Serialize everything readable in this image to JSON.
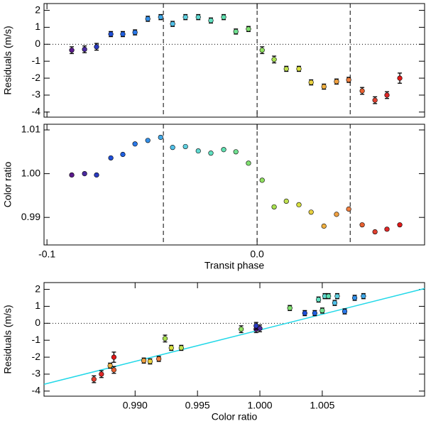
{
  "chart_data": [
    {
      "type": "scatter",
      "ylabel": "Residuals (m/s)",
      "x": [
        -0.0882,
        -0.0821,
        -0.0764,
        -0.0696,
        -0.0639,
        -0.0581,
        -0.052,
        -0.0459,
        -0.0402,
        -0.0341,
        -0.028,
        -0.022,
        -0.0159,
        -0.0101,
        -0.0041,
        0.0024,
        0.0081,
        0.0139,
        0.0199,
        0.0257,
        0.0318,
        0.0378,
        0.0436,
        0.05,
        0.0561,
        0.0618,
        0.0679
      ],
      "series": [
        {
          "values": [
            -0.35,
            -0.3,
            -0.15,
            0.6,
            0.6,
            0.7,
            1.5,
            1.6,
            1.2,
            1.6,
            1.6,
            1.4,
            1.6,
            0.75,
            0.9,
            -0.35,
            -0.9,
            -1.45,
            -1.45,
            -2.25,
            -2.5,
            -2.2,
            -2.1,
            -2.75,
            -3.3,
            -3.0,
            -2.0
          ],
          "errors": [
            0.2,
            0.2,
            0.2,
            0.15,
            0.15,
            0.15,
            0.15,
            0.15,
            0.15,
            0.15,
            0.15,
            0.15,
            0.15,
            0.15,
            0.15,
            0.2,
            0.2,
            0.15,
            0.15,
            0.15,
            0.15,
            0.15,
            0.15,
            0.2,
            0.2,
            0.2,
            0.3
          ],
          "colors": [
            "#5a1a8c",
            "#4a2aa0",
            "#2a3ac0",
            "#1f4fd8",
            "#2060e0",
            "#2a78e8",
            "#3590e8",
            "#40a8e8",
            "#50c0e8",
            "#60d0e0",
            "#60d8d0",
            "#60e0c0",
            "#60e0b0",
            "#70e090",
            "#80e070",
            "#90e060",
            "#a8e050",
            "#c0e050",
            "#d8e040",
            "#e8d040",
            "#f0b040",
            "#f0a040",
            "#f08040",
            "#e86030",
            "#e04030",
            "#e02828",
            "#e01818"
          ]
        }
      ],
      "xlim": [
        -0.1014,
        0.0797
      ],
      "ylim": [
        -4.3,
        2.4
      ],
      "xticks": [
        -0.1,
        {
          "value": 0,
          "label": "0.0"
        }
      ],
      "show_xticklabels": false,
      "yticks": [
        2,
        1,
        0,
        -1,
        -2,
        -3,
        -4
      ],
      "vlines": [
        -0.0446,
        0,
        0.0443
      ],
      "hline": 0
    },
    {
      "type": "scatter",
      "ylabel": "Color ratio",
      "xlabel": "Transit phase",
      "x": [
        -0.0882,
        -0.0821,
        -0.0764,
        -0.0696,
        -0.0639,
        -0.0581,
        -0.052,
        -0.0459,
        -0.0402,
        -0.0341,
        -0.028,
        -0.022,
        -0.0159,
        -0.0101,
        -0.0041,
        0.0024,
        0.0081,
        0.0139,
        0.0199,
        0.0257,
        0.0318,
        0.0378,
        0.0436,
        0.05,
        0.0561,
        0.0618,
        0.0679
      ],
      "series": [
        {
          "values": [
            0.9997,
            1.0,
            0.9997,
            1.0036,
            1.0044,
            1.0068,
            1.0076,
            1.0083,
            1.006,
            1.0062,
            1.0052,
            1.0047,
            1.0055,
            1.005,
            1.0024,
            0.9985,
            0.9924,
            0.9937,
            0.9929,
            0.9912,
            0.988,
            0.9907,
            0.9919,
            0.9883,
            0.9867,
            0.9873,
            0.9883
          ],
          "colors": [
            "#5a1a8c",
            "#4a2aa0",
            "#2a3ac0",
            "#1f4fd8",
            "#2060e0",
            "#2a78e8",
            "#3590e8",
            "#40a8e8",
            "#50c0e8",
            "#60d0e0",
            "#60d8d0",
            "#60e0c0",
            "#60e0b0",
            "#70e090",
            "#80e070",
            "#90e060",
            "#a8e050",
            "#c0e050",
            "#d8e040",
            "#e8d040",
            "#f0b040",
            "#f0a040",
            "#f08040",
            "#e86030",
            "#e04030",
            "#e02828",
            "#e01818"
          ]
        }
      ],
      "xlim": [
        -0.1014,
        0.0797
      ],
      "ylim": [
        0.9837,
        1.0113
      ],
      "xticks": [
        -0.1,
        {
          "value": 0,
          "label": "0.0"
        }
      ],
      "show_xticklabels": true,
      "yticks": [
        1.01,
        {
          "value": 1,
          "label": "1.00"
        },
        0.99
      ],
      "vlines": [
        -0.0446,
        0,
        0.0443
      ]
    },
    {
      "type": "scatter",
      "ylabel": "Residuals (m/s)",
      "xlabel": "Color ratio",
      "x": [
        0.9997,
        1.0,
        0.9997,
        1.0036,
        1.0044,
        1.0068,
        1.0076,
        1.0083,
        1.006,
        1.0062,
        1.0052,
        1.0047,
        1.0055,
        1.005,
        1.0024,
        0.9985,
        0.9924,
        0.9937,
        0.9929,
        0.9912,
        0.988,
        0.9907,
        0.9919,
        0.9883,
        0.9867,
        0.9873,
        0.9883
      ],
      "series": [
        {
          "values": [
            -0.35,
            -0.3,
            -0.15,
            0.6,
            0.6,
            0.7,
            1.5,
            1.6,
            1.2,
            1.6,
            1.6,
            1.4,
            1.6,
            0.75,
            0.9,
            -0.35,
            -0.9,
            -1.45,
            -1.45,
            -2.25,
            -2.5,
            -2.2,
            -2.1,
            -2.75,
            -3.3,
            -3.0,
            -2.0
          ],
          "errors": [
            0.2,
            0.2,
            0.2,
            0.15,
            0.15,
            0.15,
            0.15,
            0.15,
            0.15,
            0.15,
            0.15,
            0.15,
            0.15,
            0.15,
            0.15,
            0.2,
            0.2,
            0.15,
            0.15,
            0.15,
            0.15,
            0.15,
            0.15,
            0.2,
            0.2,
            0.2,
            0.3
          ],
          "colors": [
            "#5a1a8c",
            "#4a2aa0",
            "#2a3ac0",
            "#1f4fd8",
            "#2060e0",
            "#2a78e8",
            "#3590e8",
            "#40a8e8",
            "#50c0e8",
            "#60d0e0",
            "#60d8d0",
            "#60e0c0",
            "#60e0b0",
            "#70e090",
            "#80e070",
            "#90e060",
            "#a8e050",
            "#c0e050",
            "#d8e040",
            "#e8d040",
            "#f0b040",
            "#f0a040",
            "#f08040",
            "#e86030",
            "#e04030",
            "#e02828",
            "#e01818"
          ]
        }
      ],
      "fit": {
        "x": [
          0.9827,
          1.0132
        ],
        "y": [
          -3.6,
          2.05
        ],
        "color": "#22d8e8"
      },
      "xlim": [
        0.9827,
        1.0132
      ],
      "ylim": [
        -4.3,
        2.4
      ],
      "xticks": [
        {
          "value": 0.99,
          "label": "0.990"
        },
        {
          "value": 0.995,
          "label": "0.995"
        },
        {
          "value": 1,
          "label": "1.000"
        },
        {
          "value": 1.005,
          "label": "1.005"
        }
      ],
      "show_xticklabels": true,
      "yticks": [
        2,
        1,
        0,
        -1,
        -2,
        -3,
        -4
      ],
      "hline": 0
    }
  ]
}
